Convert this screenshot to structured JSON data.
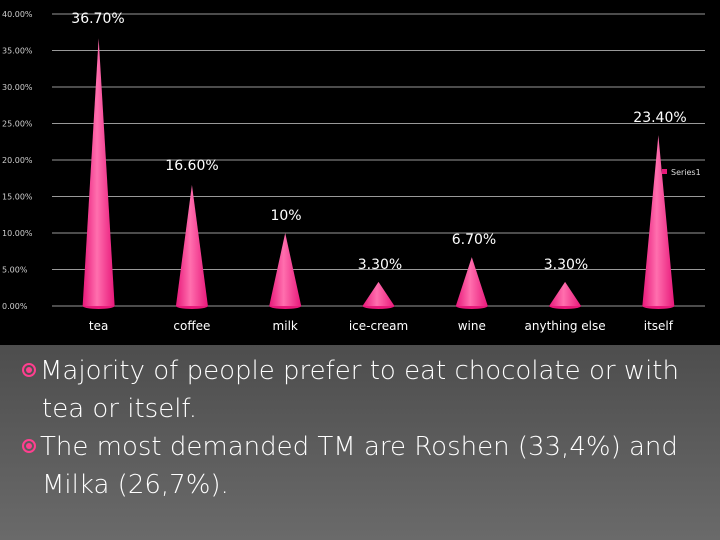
{
  "chart_data": {
    "type": "bar",
    "bar_shape": "cone",
    "categories": [
      "tea",
      "coffee",
      "milk",
      "ice-cream",
      "wine",
      "anything else",
      "itself"
    ],
    "series": [
      {
        "name": "Series1",
        "values": [
          36.7,
          16.6,
          10,
          3.3,
          6.7,
          3.3,
          23.4
        ]
      }
    ],
    "data_labels": [
      "36.70%",
      "16.60%",
      "10%",
      "3.30%",
      "6.70%",
      "3.30%",
      "23.40%"
    ],
    "yticks": [
      "0.00%",
      "5.00%",
      "10.00%",
      "15.00%",
      "20.00%",
      "25.00%",
      "30.00%",
      "35.00%",
      "40.00%"
    ],
    "ylim": [
      0,
      40
    ],
    "grid": true,
    "legend": "right",
    "title": "",
    "xlabel": "",
    "ylabel": "",
    "colors": {
      "bar": "#e8187a",
      "bar_highlight": "#ff6fae",
      "background": "#000000",
      "grid": "#cccccc"
    }
  },
  "bullets": [
    {
      "icon": "circle-bullet-icon",
      "text": "Majority of people prefer to eat chocolate or with tea or itself."
    },
    {
      "icon": "circle-bullet-icon",
      "text": "The most demanded TM are Roshen (33,4%) and Milka (26,7%)."
    }
  ]
}
